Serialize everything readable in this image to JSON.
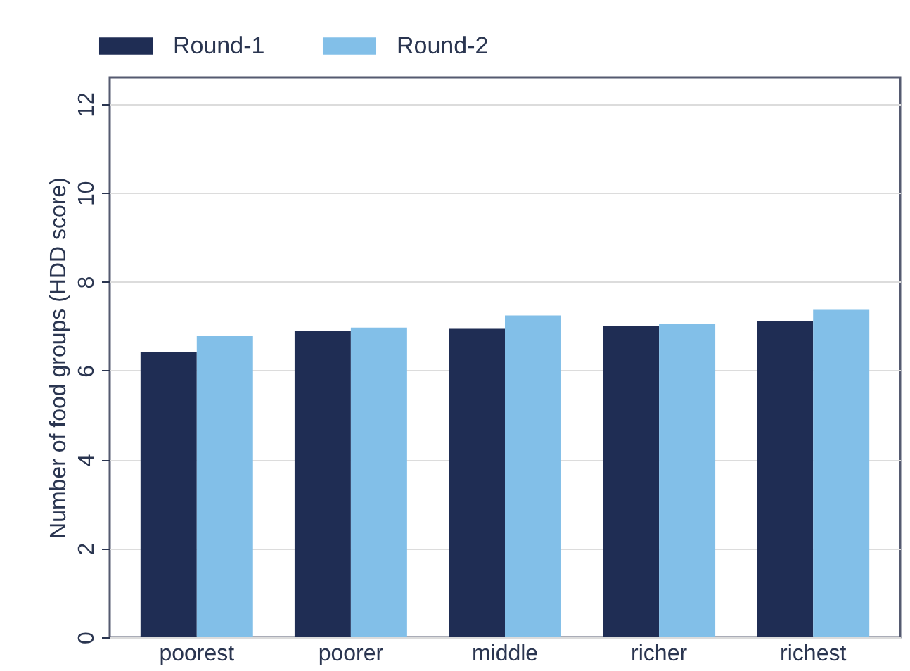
{
  "chart_data": {
    "type": "bar",
    "ylabel": "Number of food groups (HDD score)",
    "categories": [
      "poorest",
      "poorer",
      "middle",
      "richer",
      "richest"
    ],
    "series": [
      {
        "name": "Round-1",
        "color": "#1f2d54",
        "values": [
          6.42,
          6.89,
          6.94,
          7.0,
          7.12
        ]
      },
      {
        "name": "Round-2",
        "color": "#82bfe8",
        "values": [
          6.78,
          6.97,
          7.24,
          7.06,
          7.37
        ]
      }
    ],
    "ylim": [
      0,
      12.6
    ],
    "yticks": [
      0,
      2,
      4,
      6,
      8,
      10,
      12
    ],
    "grid": "y",
    "legend": "top"
  }
}
